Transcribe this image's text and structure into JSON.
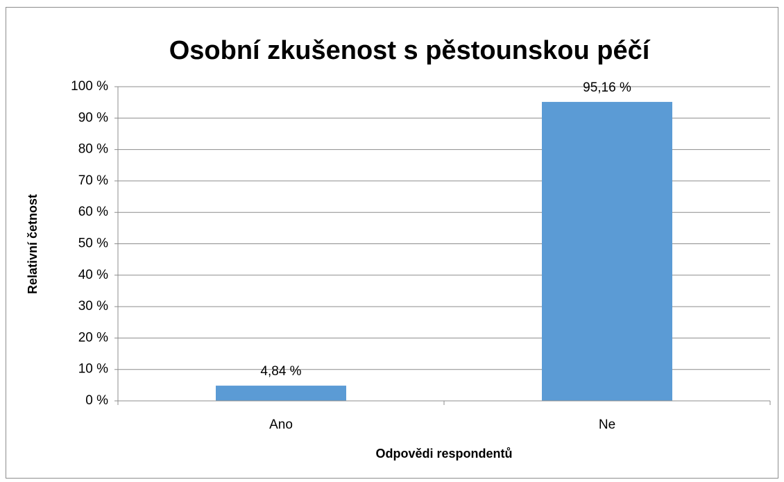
{
  "chart_data": {
    "type": "bar",
    "title": "Osobní zkušenost s pěstounskou péčí",
    "x_label": "Odpovědi respondentů",
    "y_label": "Relativní četnost",
    "categories": [
      "Ano",
      "Ne"
    ],
    "values": [
      4.84,
      95.16
    ],
    "value_labels": [
      "4,84 %",
      "95,16 %"
    ],
    "color": "#5b9bd5",
    "ylim": [
      0,
      100
    ],
    "yticks": [
      {
        "value": 0,
        "label": "0 %"
      },
      {
        "value": 10,
        "label": "10 %"
      },
      {
        "value": 20,
        "label": "20 %"
      },
      {
        "value": 30,
        "label": "30 %"
      },
      {
        "value": 40,
        "label": "40 %"
      },
      {
        "value": 50,
        "label": "50 %"
      },
      {
        "value": 60,
        "label": "60 %"
      },
      {
        "value": 70,
        "label": "70 %"
      },
      {
        "value": 80,
        "label": "80 %"
      },
      {
        "value": 90,
        "label": "90 %"
      },
      {
        "value": 100,
        "label": "100 %"
      }
    ],
    "grid": true
  }
}
